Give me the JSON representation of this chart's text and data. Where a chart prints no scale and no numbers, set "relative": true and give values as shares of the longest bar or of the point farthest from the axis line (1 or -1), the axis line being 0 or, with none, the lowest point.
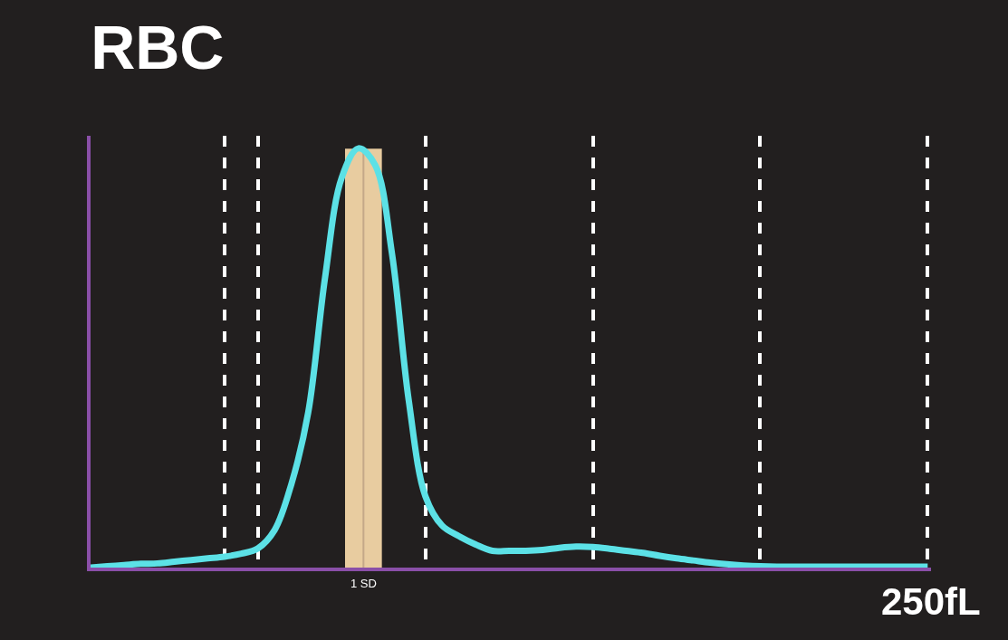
{
  "chart_data": {
    "type": "line",
    "title": "RBC",
    "relative": true,
    "categories": [
      null,
      null,
      null,
      null,
      null,
      null,
      null,
      null,
      null,
      null,
      null,
      null,
      null,
      null,
      null,
      null,
      null,
      null,
      null,
      null,
      null,
      null,
      null,
      null,
      null,
      null,
      null,
      null,
      null,
      null,
      null,
      null,
      null,
      null,
      null,
      null,
      null,
      null,
      null,
      null,
      null,
      null,
      null,
      null,
      null,
      null,
      null,
      null,
      null,
      null,
      null
    ],
    "series": [
      {
        "color": "#5ce1e6",
        "values": [
          0,
          0.003,
          0.006,
          0.009,
          0.01,
          0.014,
          0.018,
          0.022,
          0.026,
          0.033,
          0.046,
          0.09,
          0.2,
          0.37,
          0.69,
          0.93,
          1.0,
          0.96,
          0.75,
          0.4,
          0.17,
          0.1,
          0.075,
          0.055,
          0.04,
          0.04,
          0.04,
          0.042,
          0.047,
          0.05,
          0.049,
          0.045,
          0.04,
          0.035,
          0.028,
          0.022,
          0.017,
          0.012,
          0.008,
          0.005,
          0.003,
          0.002,
          0.002,
          0.002,
          0.002,
          0.002,
          0.002,
          0.002,
          0.002,
          0.002,
          0.002
        ]
      }
    ],
    "annotations": [
      "1 SD",
      "250fL"
    ],
    "grid": "x",
    "line_style": "solid",
    "marker": "none"
  }
}
